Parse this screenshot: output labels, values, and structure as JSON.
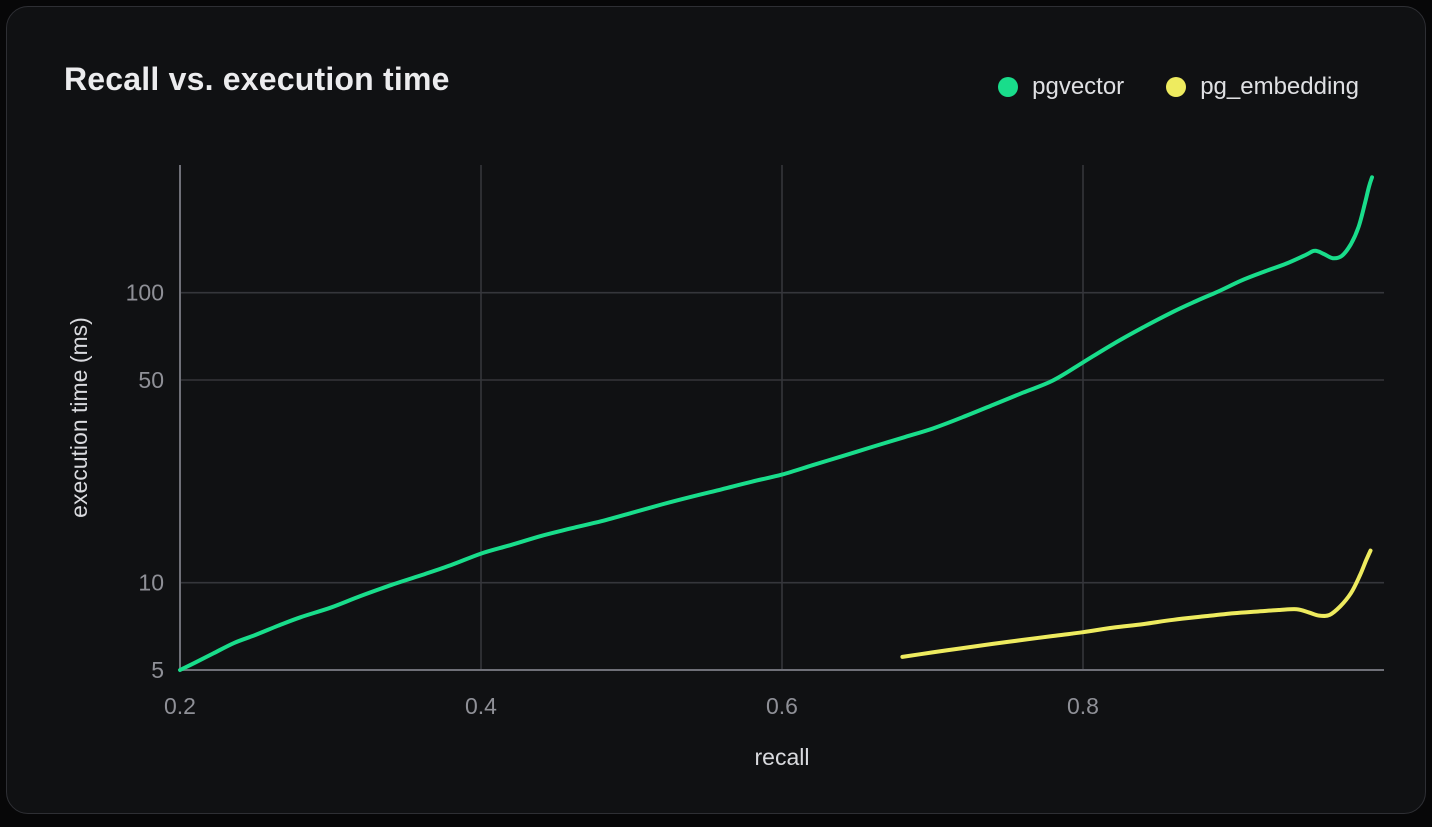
{
  "window": {
    "title": "Recall vs. execution time"
  },
  "colors": {
    "page_bg": "#070708",
    "card_bg": "#101113",
    "card_border": "#2e2f34",
    "grid_line": "#35363b",
    "axis_line": "#6f7078",
    "tick_label": "#8f9097",
    "axis_title": "#d9dade",
    "title_text": "#ececee",
    "legend_text": "#dfe0e3",
    "pgvector_green": "#19dd8b",
    "pg_embedding_yellow": "#eeeb5f"
  },
  "chart_data": {
    "type": "line",
    "title": "Recall vs. execution time",
    "xlabel": "recall",
    "ylabel": "execution time (ms)",
    "grid": true,
    "legend_position": "top-right",
    "x_axis": {
      "scale": "linear",
      "min": 0.2,
      "max": 1.0,
      "ticks": [
        0.2,
        0.4,
        0.6,
        0.8
      ],
      "tick_labels": [
        "0.2",
        "0.4",
        "0.6",
        "0.8"
      ],
      "gridlines": [
        0.4,
        0.6,
        0.8
      ]
    },
    "y_axis": {
      "scale": "log",
      "min": 5,
      "max": 280,
      "ticks": [
        5,
        10,
        50,
        100
      ],
      "tick_labels": [
        "5",
        "10",
        "50",
        "100"
      ],
      "gridlines": [
        10,
        50,
        100
      ]
    },
    "series": [
      {
        "name": "pgvector",
        "color": "#19dd8b",
        "points": [
          [
            0.2,
            5.0
          ],
          [
            0.21,
            5.3
          ],
          [
            0.222,
            5.7
          ],
          [
            0.236,
            6.2
          ],
          [
            0.25,
            6.6
          ],
          [
            0.265,
            7.1
          ],
          [
            0.28,
            7.6
          ],
          [
            0.3,
            8.2
          ],
          [
            0.32,
            9.0
          ],
          [
            0.34,
            9.8
          ],
          [
            0.36,
            10.6
          ],
          [
            0.38,
            11.5
          ],
          [
            0.4,
            12.6
          ],
          [
            0.42,
            13.5
          ],
          [
            0.44,
            14.5
          ],
          [
            0.46,
            15.4
          ],
          [
            0.48,
            16.3
          ],
          [
            0.5,
            17.4
          ],
          [
            0.52,
            18.6
          ],
          [
            0.54,
            19.8
          ],
          [
            0.56,
            21.0
          ],
          [
            0.58,
            22.3
          ],
          [
            0.6,
            23.6
          ],
          [
            0.62,
            25.4
          ],
          [
            0.64,
            27.3
          ],
          [
            0.66,
            29.4
          ],
          [
            0.68,
            31.6
          ],
          [
            0.7,
            34.0
          ],
          [
            0.72,
            37.2
          ],
          [
            0.74,
            41.0
          ],
          [
            0.76,
            45.2
          ],
          [
            0.78,
            49.8
          ],
          [
            0.8,
            57.5
          ],
          [
            0.82,
            66.5
          ],
          [
            0.84,
            76.0
          ],
          [
            0.86,
            86.0
          ],
          [
            0.876,
            94.0
          ],
          [
            0.89,
            101.0
          ],
          [
            0.905,
            110.0
          ],
          [
            0.92,
            118.0
          ],
          [
            0.935,
            126.0
          ],
          [
            0.948,
            135.0
          ],
          [
            0.954,
            139.5
          ],
          [
            0.96,
            136.0
          ],
          [
            0.966,
            131.5
          ],
          [
            0.972,
            134.0
          ],
          [
            0.978,
            147.0
          ],
          [
            0.983,
            168.0
          ],
          [
            0.987,
            200.0
          ],
          [
            0.99,
            232.0
          ],
          [
            0.992,
            250.0
          ]
        ]
      },
      {
        "name": "pg_embedding",
        "color": "#eeeb5f",
        "points": [
          [
            0.68,
            5.55
          ],
          [
            0.7,
            5.75
          ],
          [
            0.72,
            5.95
          ],
          [
            0.74,
            6.15
          ],
          [
            0.76,
            6.35
          ],
          [
            0.78,
            6.55
          ],
          [
            0.8,
            6.75
          ],
          [
            0.82,
            7.0
          ],
          [
            0.84,
            7.2
          ],
          [
            0.86,
            7.45
          ],
          [
            0.88,
            7.65
          ],
          [
            0.9,
            7.85
          ],
          [
            0.915,
            7.95
          ],
          [
            0.93,
            8.05
          ],
          [
            0.942,
            8.1
          ],
          [
            0.95,
            7.9
          ],
          [
            0.957,
            7.7
          ],
          [
            0.964,
            7.75
          ],
          [
            0.971,
            8.3
          ],
          [
            0.978,
            9.2
          ],
          [
            0.984,
            10.6
          ],
          [
            0.988,
            11.9
          ],
          [
            0.991,
            12.9
          ]
        ]
      }
    ]
  }
}
